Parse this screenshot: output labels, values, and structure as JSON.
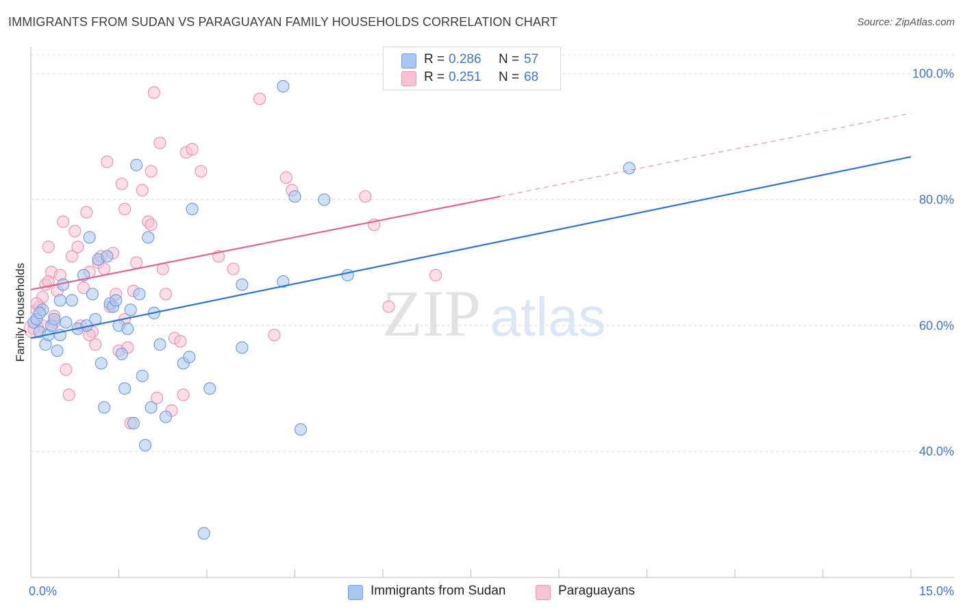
{
  "title": "IMMIGRANTS FROM SUDAN VS PARAGUAYAN FAMILY HOUSEHOLDS CORRELATION CHART",
  "source": "Source: ZipAtlas.com",
  "watermark": {
    "zip": "ZIP",
    "atlas": "atlas"
  },
  "legend": {
    "rows": [
      {
        "r_label": "R =",
        "r_value": "0.286",
        "n_label": "N =",
        "n_value": "57",
        "color": "#8fb3e9"
      },
      {
        "r_label": "R =",
        "r_value": "0.251",
        "n_label": "N =",
        "n_value": "68",
        "color": "#f3a8c0"
      }
    ]
  },
  "bottom_legend": {
    "items": [
      {
        "label": "Immigrants from Sudan",
        "color": "#8fb3e9"
      },
      {
        "label": "Paraguayans",
        "color": "#f3a8c0"
      }
    ]
  },
  "colors": {
    "blue_fill": "#a9c6f0",
    "blue_stroke": "#6f9fe0",
    "blue_line": "#2e72d2",
    "pink_fill": "#f7c2d3",
    "pink_stroke": "#ee94b1",
    "pink_line": "#e0628e",
    "axis_tick_text": "#3f74c9",
    "grid": "#d8d8d8"
  },
  "chart_data": {
    "type": "scatter",
    "title": "IMMIGRANTS FROM SUDAN VS PARAGUAYAN FAMILY HOUSEHOLDS CORRELATION CHART",
    "xlabel": "",
    "ylabel": "Family Households",
    "xlim": [
      0,
      15
    ],
    "ylim": [
      20,
      103
    ],
    "x_tick_labels": [
      {
        "value": 0,
        "label": "0.0%"
      },
      {
        "value": 15,
        "label": "15.0%"
      }
    ],
    "y_tick_labels": [
      {
        "value": 40,
        "label": "40.0%"
      },
      {
        "value": 60,
        "label": "60.0%"
      },
      {
        "value": 80,
        "label": "80.0%"
      },
      {
        "value": 100,
        "label": "100.0%"
      }
    ],
    "grid": true,
    "series": [
      {
        "name": "Immigrants from Sudan",
        "color": "#8fb3e9",
        "trend": {
          "x0": 0,
          "y0": 58.0,
          "x1": 15,
          "y1": 86.8,
          "dashed_from": null
        },
        "points": [
          [
            0.05,
            60.5
          ],
          [
            0.1,
            61.0
          ],
          [
            0.15,
            59.0
          ],
          [
            0.2,
            62.5
          ],
          [
            0.25,
            57.0
          ],
          [
            0.3,
            58.5
          ],
          [
            0.35,
            60.0
          ],
          [
            0.4,
            61.0
          ],
          [
            0.45,
            56.0
          ],
          [
            0.5,
            64.0
          ],
          [
            0.55,
            66.5
          ],
          [
            0.6,
            60.5
          ],
          [
            0.7,
            64.0
          ],
          [
            0.8,
            59.5
          ],
          [
            0.9,
            68.0
          ],
          [
            0.95,
            60.0
          ],
          [
            1.0,
            74.0
          ],
          [
            1.05,
            65.0
          ],
          [
            1.1,
            61.0
          ],
          [
            1.15,
            70.5
          ],
          [
            1.2,
            54.0
          ],
          [
            1.25,
            47.0
          ],
          [
            1.3,
            71.0
          ],
          [
            1.35,
            63.5
          ],
          [
            1.4,
            63.0
          ],
          [
            1.45,
            64.0
          ],
          [
            1.5,
            60.0
          ],
          [
            1.55,
            55.5
          ],
          [
            1.6,
            50.0
          ],
          [
            1.65,
            59.5
          ],
          [
            1.7,
            62.5
          ],
          [
            1.75,
            44.5
          ],
          [
            1.8,
            85.5
          ],
          [
            1.85,
            65.0
          ],
          [
            1.9,
            52.0
          ],
          [
            1.95,
            41.0
          ],
          [
            2.0,
            74.0
          ],
          [
            2.05,
            47.0
          ],
          [
            2.1,
            62.0
          ],
          [
            2.2,
            57.0
          ],
          [
            2.3,
            45.5
          ],
          [
            2.6,
            54.0
          ],
          [
            2.7,
            55.0
          ],
          [
            2.75,
            78.5
          ],
          [
            2.95,
            27.0
          ],
          [
            3.05,
            50.0
          ],
          [
            3.6,
            66.5
          ],
          [
            3.6,
            56.5
          ],
          [
            4.3,
            67.0
          ],
          [
            4.3,
            98.0
          ],
          [
            4.5,
            80.5
          ],
          [
            4.6,
            43.5
          ],
          [
            5.0,
            80.0
          ],
          [
            5.4,
            68.0
          ],
          [
            10.2,
            85.0
          ],
          [
            0.15,
            62.0
          ],
          [
            0.5,
            58.5
          ]
        ]
      },
      {
        "name": "Paraguayans",
        "color": "#f3a8c0",
        "trend": {
          "x0": 0,
          "y0": 65.7,
          "x1": 8.0,
          "y1": 80.5,
          "dashed_from": 8.0,
          "dashed_to": {
            "x": 15,
            "y": 93.7
          }
        },
        "points": [
          [
            0.05,
            59.5
          ],
          [
            0.1,
            62.5
          ],
          [
            0.15,
            63.0
          ],
          [
            0.2,
            64.5
          ],
          [
            0.25,
            66.5
          ],
          [
            0.3,
            72.5
          ],
          [
            0.35,
            68.5
          ],
          [
            0.4,
            60.5
          ],
          [
            0.45,
            65.5
          ],
          [
            0.5,
            68.0
          ],
          [
            0.55,
            76.5
          ],
          [
            0.6,
            53.0
          ],
          [
            0.65,
            49.0
          ],
          [
            0.7,
            71.0
          ],
          [
            0.75,
            75.0
          ],
          [
            0.8,
            72.5
          ],
          [
            0.85,
            60.0
          ],
          [
            0.9,
            66.0
          ],
          [
            0.95,
            78.0
          ],
          [
            1.0,
            68.5
          ],
          [
            1.05,
            59.0
          ],
          [
            1.1,
            57.0
          ],
          [
            1.15,
            70.0
          ],
          [
            1.2,
            71.0
          ],
          [
            1.25,
            69.0
          ],
          [
            1.3,
            86.0
          ],
          [
            1.35,
            63.0
          ],
          [
            1.4,
            71.5
          ],
          [
            1.45,
            65.0
          ],
          [
            1.5,
            56.0
          ],
          [
            1.55,
            82.5
          ],
          [
            1.6,
            78.5
          ],
          [
            1.65,
            56.5
          ],
          [
            1.7,
            44.5
          ],
          [
            1.75,
            65.5
          ],
          [
            1.8,
            70.0
          ],
          [
            1.9,
            81.5
          ],
          [
            2.0,
            76.5
          ],
          [
            2.05,
            84.5
          ],
          [
            2.1,
            97.0
          ],
          [
            2.15,
            48.5
          ],
          [
            2.2,
            89.0
          ],
          [
            2.25,
            69.0
          ],
          [
            2.3,
            65.0
          ],
          [
            2.4,
            46.5
          ],
          [
            2.45,
            58.0
          ],
          [
            2.55,
            57.5
          ],
          [
            2.6,
            49.0
          ],
          [
            2.65,
            87.5
          ],
          [
            2.75,
            88.0
          ],
          [
            2.9,
            84.5
          ],
          [
            3.2,
            71.0
          ],
          [
            3.45,
            69.0
          ],
          [
            3.9,
            96.0
          ],
          [
            4.15,
            58.5
          ],
          [
            4.35,
            83.5
          ],
          [
            4.45,
            81.5
          ],
          [
            5.7,
            80.5
          ],
          [
            5.85,
            76.0
          ],
          [
            6.1,
            63.0
          ],
          [
            6.9,
            68.0
          ],
          [
            0.2,
            60.0
          ],
          [
            0.4,
            61.5
          ],
          [
            1.6,
            61.0
          ],
          [
            2.05,
            76.0
          ],
          [
            0.1,
            63.5
          ],
          [
            0.3,
            67.0
          ],
          [
            1.0,
            58.5
          ]
        ]
      }
    ]
  }
}
